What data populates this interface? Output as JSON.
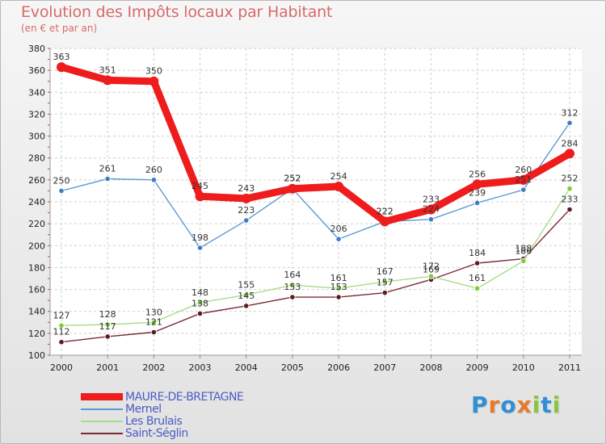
{
  "header": {
    "title": "Evolution des Impôts locaux par Habitant",
    "subtitle": "(en € et par an)"
  },
  "logo": {
    "text": "Proxiti",
    "letters": [
      "P",
      "r",
      "o",
      "x",
      "i",
      "t",
      "i"
    ],
    "colors": [
      "#2e8fd6",
      "#e8792a",
      "#2e8fd6",
      "#e8792a",
      "#8cc63f",
      "#2e8fd6",
      "#8cc63f"
    ]
  },
  "chart_data": {
    "type": "line",
    "title": "Evolution des Impôts locaux par Habitant",
    "subtitle": "(en € et par an)",
    "xlabel": "",
    "ylabel": "",
    "categories": [
      "2000",
      "2001",
      "2002",
      "2003",
      "2004",
      "2005",
      "2006",
      "2007",
      "2008",
      "2009",
      "2010",
      "2011"
    ],
    "ylim": [
      100,
      380
    ],
    "yticks": [
      100,
      120,
      140,
      160,
      180,
      200,
      220,
      240,
      260,
      280,
      300,
      320,
      340,
      360,
      380
    ],
    "grid": true,
    "legend_position": "bottom-left",
    "series": [
      {
        "name": "MAURE-DE-BRETAGNE",
        "color": "#ee1c1c",
        "thick": true,
        "values": [
          363,
          351,
          350,
          245,
          243,
          252,
          254,
          222,
          233,
          256,
          260,
          284
        ]
      },
      {
        "name": "Mernel",
        "color": "#5b9bd5",
        "point_color": "#3b7cc4",
        "thick": false,
        "values": [
          250,
          261,
          260,
          198,
          223,
          252,
          206,
          222,
          224,
          239,
          251,
          312
        ]
      },
      {
        "name": "Les Brulais",
        "color": "#a9dc8a",
        "point_color": "#7ccd3c",
        "thick": false,
        "values": [
          127,
          128,
          130,
          148,
          155,
          164,
          161,
          167,
          172,
          161,
          186,
          252
        ]
      },
      {
        "name": "Saint-Séglin",
        "color": "#7a2a32",
        "point_color": "#5e1a22",
        "thick": false,
        "values": [
          112,
          117,
          121,
          138,
          145,
          153,
          153,
          157,
          169,
          184,
          188,
          233
        ]
      }
    ],
    "point_labels": [
      [
        "363",
        "351",
        "350",
        "245",
        "243",
        "252",
        "254",
        "222",
        "233",
        "256",
        "260",
        "284"
      ],
      [
        "250",
        "261",
        "260",
        "198",
        "223",
        "252",
        "206",
        "222",
        "224",
        "239",
        "251",
        "312"
      ],
      [
        "127",
        "128",
        "130",
        "148",
        "155",
        "164",
        "161",
        "167",
        "172",
        "161",
        "186",
        "252"
      ],
      [
        "112",
        "117",
        "121",
        "138",
        "145",
        "153",
        "153",
        "157",
        "169",
        "184",
        "188",
        "233"
      ]
    ]
  }
}
